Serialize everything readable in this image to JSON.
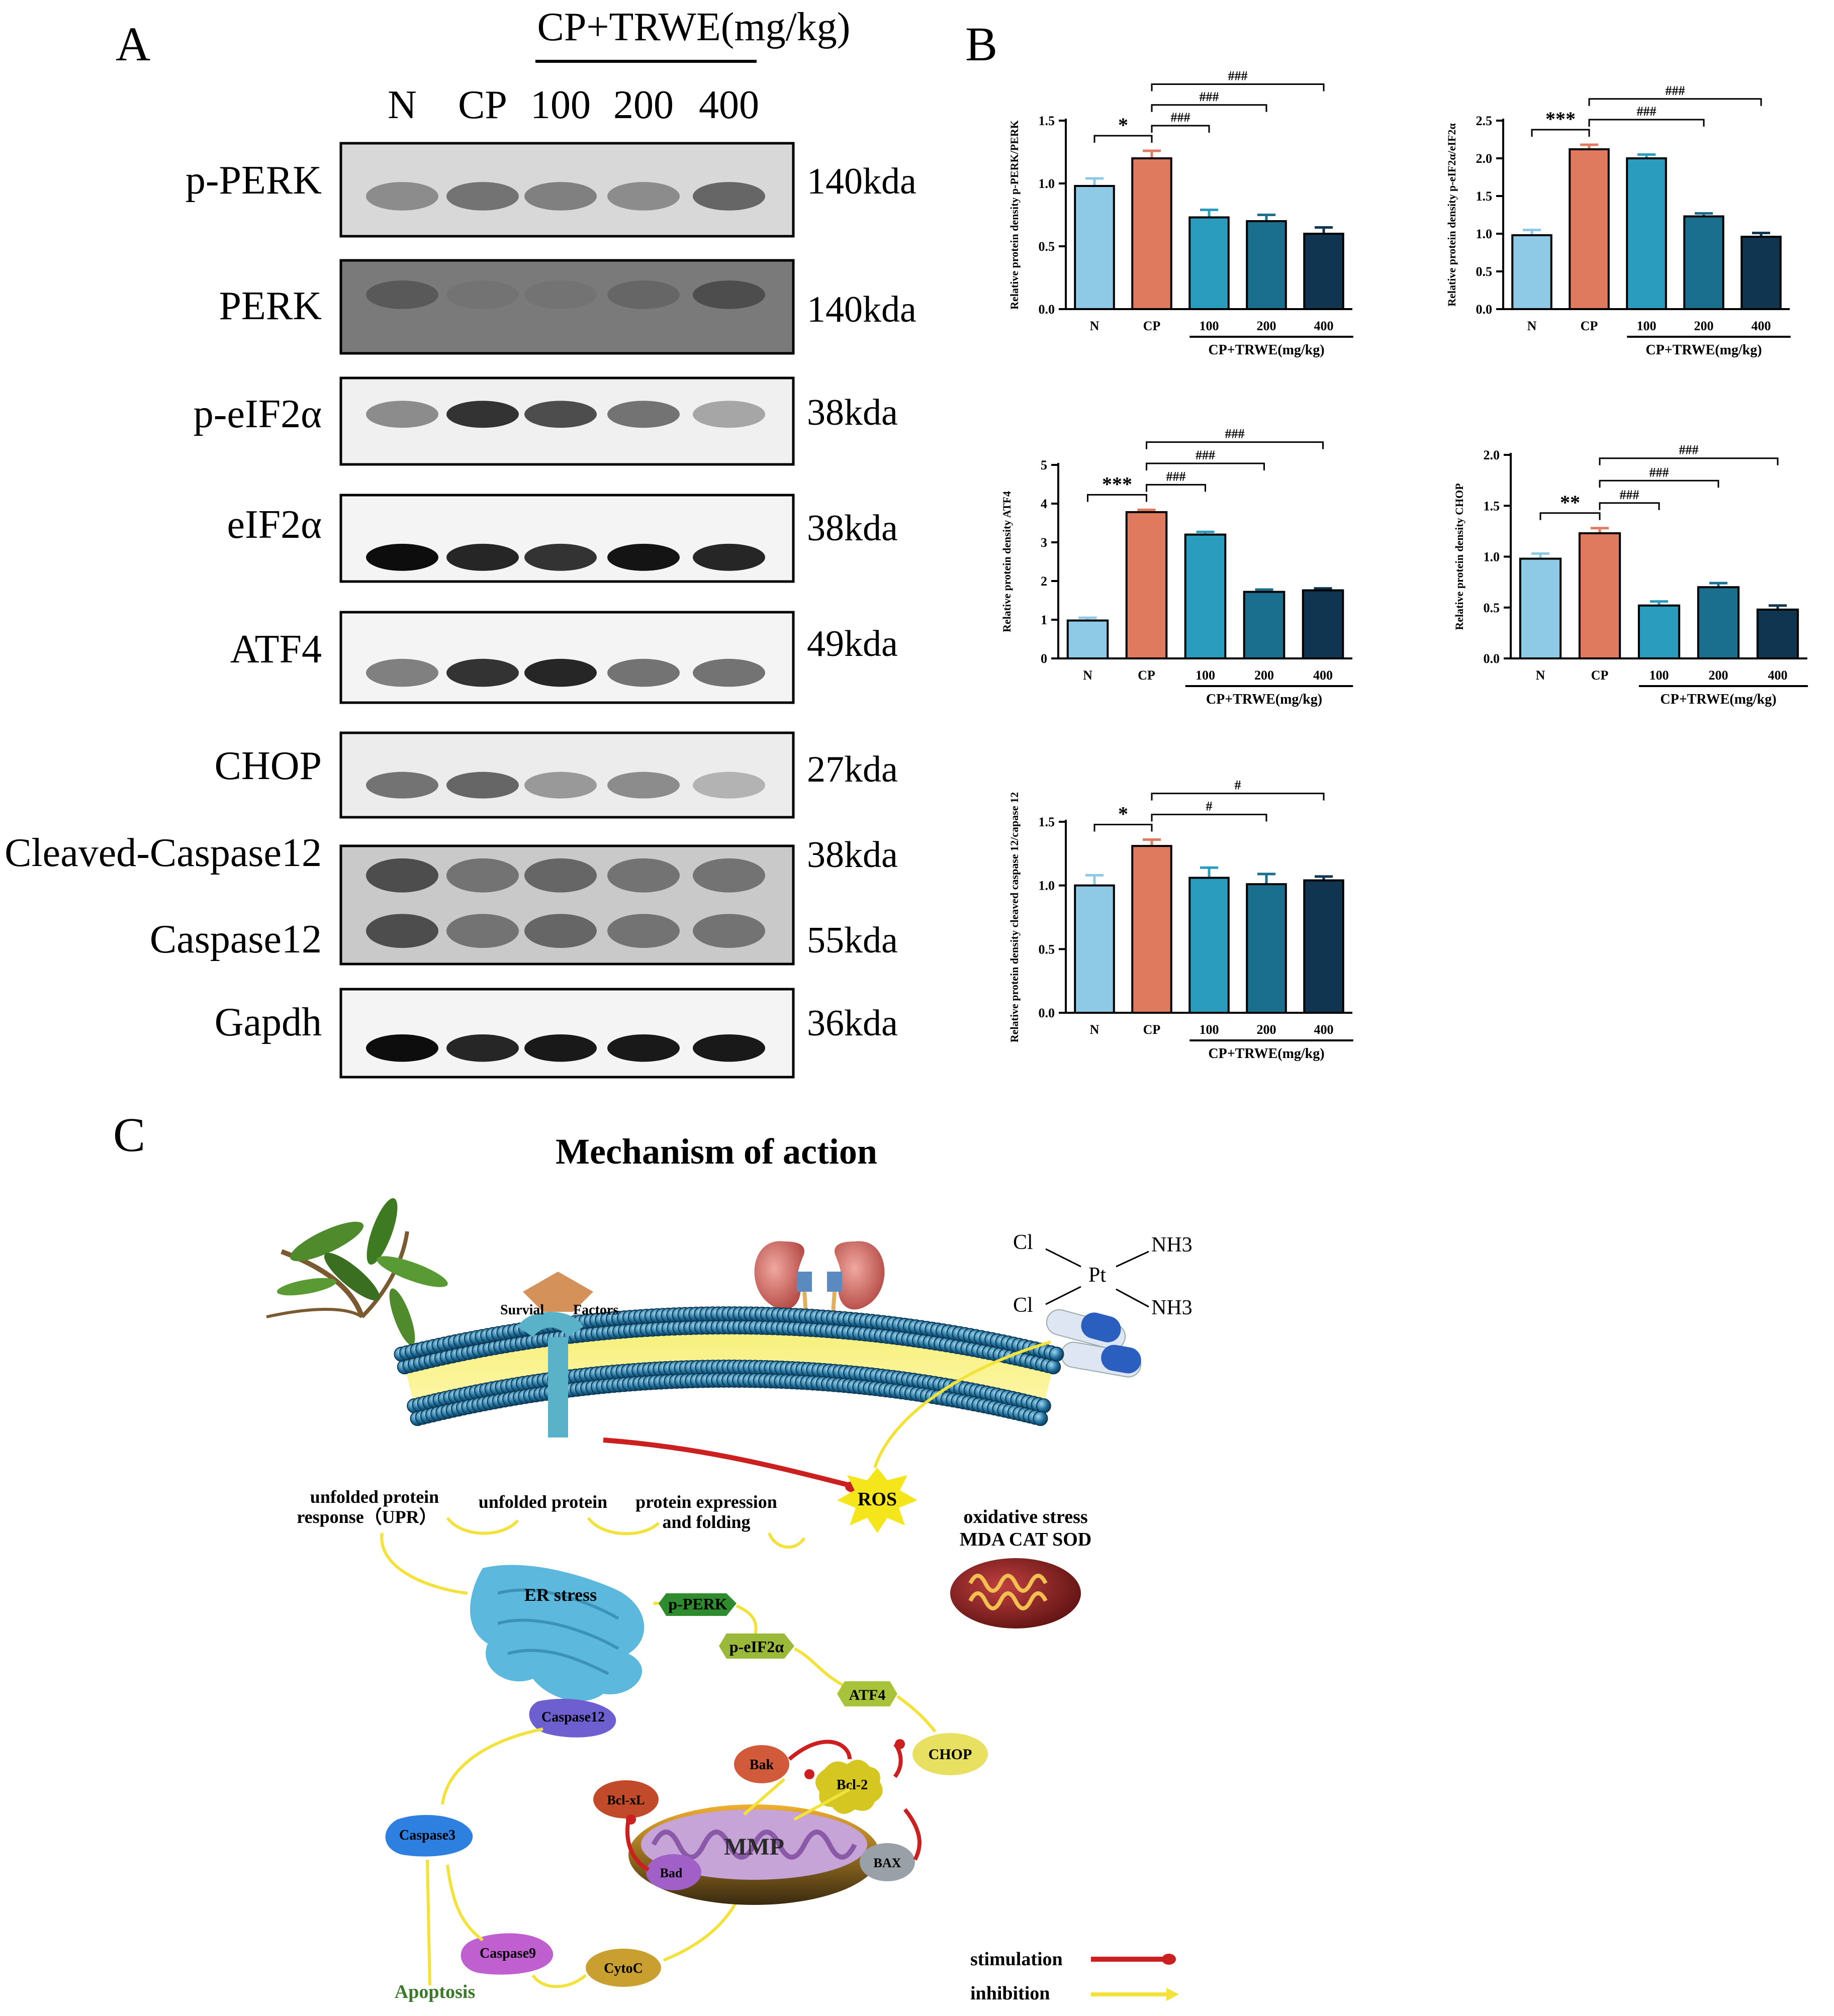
{
  "panels": {
    "A": "A",
    "B": "B",
    "C": "C"
  },
  "western_blot": {
    "treatment_header": "CP+TRWE(mg/kg)",
    "lanes": [
      "N",
      "CP",
      "100",
      "200",
      "400"
    ],
    "blots": [
      {
        "label": "p-PERK",
        "kda": "140kda"
      },
      {
        "label": "PERK",
        "kda": "140kda"
      },
      {
        "label": "p-eIF2α",
        "kda": "38kda"
      },
      {
        "label": "eIF2α",
        "kda": "38kda"
      },
      {
        "label": "ATF4",
        "kda": "49kda"
      },
      {
        "label": "CHOP",
        "kda": "27kda"
      },
      {
        "label": "Cleaved-Caspase12",
        "kda": "38kda",
        "label2": "Caspase12",
        "kda2": "55kda"
      },
      {
        "label": "Gapdh",
        "kda": "36kda"
      }
    ]
  },
  "chart_data": [
    {
      "type": "bar",
      "ylabel": "Relative protein density p-PERK/PERK",
      "categories": [
        "N",
        "CP",
        "100",
        "200",
        "400"
      ],
      "values": [
        0.98,
        1.2,
        0.73,
        0.7,
        0.6
      ],
      "errors": [
        0.06,
        0.06,
        0.06,
        0.05,
        0.05
      ],
      "ylim": [
        0,
        1.5
      ],
      "yticks": [
        "0.0",
        "0.5",
        "1.0",
        "1.5"
      ],
      "group_label": "CP+TRWE(mg/kg)",
      "sig": [
        {
          "from": 0,
          "to": 1,
          "label": "*"
        },
        {
          "from": 1,
          "to": 2,
          "label": "###"
        },
        {
          "from": 1,
          "to": 3,
          "label": "###"
        },
        {
          "from": 1,
          "to": 4,
          "label": "###"
        }
      ]
    },
    {
      "type": "bar",
      "ylabel": "Relative protein density p-eIF2α/eIF2α",
      "categories": [
        "N",
        "CP",
        "100",
        "200",
        "400"
      ],
      "values": [
        0.98,
        2.12,
        2.0,
        1.23,
        0.96
      ],
      "errors": [
        0.07,
        0.06,
        0.05,
        0.04,
        0.05
      ],
      "ylim": [
        0,
        2.5
      ],
      "yticks": [
        "0.0",
        "0.5",
        "1.0",
        "1.5",
        "2.0",
        "2.5"
      ],
      "group_label": "CP+TRWE(mg/kg)",
      "sig": [
        {
          "from": 0,
          "to": 1,
          "label": "***"
        },
        {
          "from": 1,
          "to": 3,
          "label": "###"
        },
        {
          "from": 1,
          "to": 4,
          "label": "###"
        }
      ]
    },
    {
      "type": "bar",
      "ylabel": "Relative protein density ATF4",
      "categories": [
        "N",
        "CP",
        "100",
        "200",
        "400"
      ],
      "values": [
        0.98,
        3.78,
        3.2,
        1.72,
        1.76
      ],
      "errors": [
        0.07,
        0.06,
        0.07,
        0.06,
        0.05
      ],
      "ylim": [
        0,
        5
      ],
      "yticks": [
        "0",
        "1",
        "2",
        "3",
        "4",
        "5"
      ],
      "group_label": "CP+TRWE(mg/kg)",
      "sig": [
        {
          "from": 0,
          "to": 1,
          "label": "***"
        },
        {
          "from": 1,
          "to": 2,
          "label": "###"
        },
        {
          "from": 1,
          "to": 3,
          "label": "###"
        },
        {
          "from": 1,
          "to": 4,
          "label": "###"
        }
      ]
    },
    {
      "type": "bar",
      "ylabel": "Relative protein density CHOP",
      "categories": [
        "N",
        "CP",
        "100",
        "200",
        "400"
      ],
      "values": [
        0.98,
        1.23,
        0.52,
        0.7,
        0.48
      ],
      "errors": [
        0.05,
        0.05,
        0.04,
        0.04,
        0.04
      ],
      "ylim": [
        0,
        2.0
      ],
      "yticks": [
        "0.0",
        "0.5",
        "1.0",
        "1.5",
        "2.0"
      ],
      "group_label": "CP+TRWE(mg/kg)",
      "sig": [
        {
          "from": 0,
          "to": 1,
          "label": "**"
        },
        {
          "from": 1,
          "to": 2,
          "label": "###"
        },
        {
          "from": 1,
          "to": 3,
          "label": "###"
        },
        {
          "from": 1,
          "to": 4,
          "label": "###"
        }
      ]
    },
    {
      "type": "bar",
      "ylabel": "Relative protein density cleaved caspase 12/capase 12",
      "categories": [
        "N",
        "CP",
        "100",
        "200",
        "400"
      ],
      "values": [
        1.0,
        1.31,
        1.06,
        1.01,
        1.04
      ],
      "errors": [
        0.08,
        0.05,
        0.08,
        0.08,
        0.03
      ],
      "ylim": [
        0,
        1.5
      ],
      "yticks": [
        "0.0",
        "0.5",
        "1.0",
        "1.5"
      ],
      "group_label": "CP+TRWE(mg/kg)",
      "sig": [
        {
          "from": 0,
          "to": 1,
          "label": "*"
        },
        {
          "from": 1,
          "to": 3,
          "label": "#"
        },
        {
          "from": 1,
          "to": 4,
          "label": "#"
        }
      ]
    }
  ],
  "bar_colors": [
    "#8ec9e6",
    "#e07a5f",
    "#2a9dbf",
    "#1a6f8f",
    "#0f3550"
  ],
  "mechanism": {
    "title": "Mechanism of action",
    "receptor": {
      "left": "Survial",
      "right": "Factors"
    },
    "cisplatin": {
      "cl1": "Cl",
      "cl2": "Cl",
      "pt": "Pt",
      "nh3a": "NH3",
      "nh3b": "NH3"
    },
    "upr": {
      "line1": "unfolded protein",
      "line2": "response（UPR）"
    },
    "unfolded_protein": "unfolded protein",
    "protein_expr": {
      "line1": "protein expression",
      "line2": "and folding"
    },
    "ros": "ROS",
    "oxidative": {
      "line1": "oxidative stress",
      "line2": "MDA CAT SOD"
    },
    "er_stress": "ER stress",
    "nodes": {
      "perk": "p-PERK",
      "eif2a": "p-eIF2α",
      "atf4": "ATF4",
      "chop": "CHOP",
      "caspase12": "Caspase12",
      "caspase3": "Caspase3",
      "caspase9": "Caspase9",
      "cytoc": "CytoC",
      "bak": "Bak",
      "bcl2": "Bcl-2",
      "bclxl": "Bcl-xL",
      "bad": "Bad",
      "bax": "BAX",
      "mmp": "MMP",
      "apoptosis": "Apoptosis"
    },
    "legend": {
      "stimulation": "stimulation",
      "inhibition": "inhibition"
    }
  }
}
